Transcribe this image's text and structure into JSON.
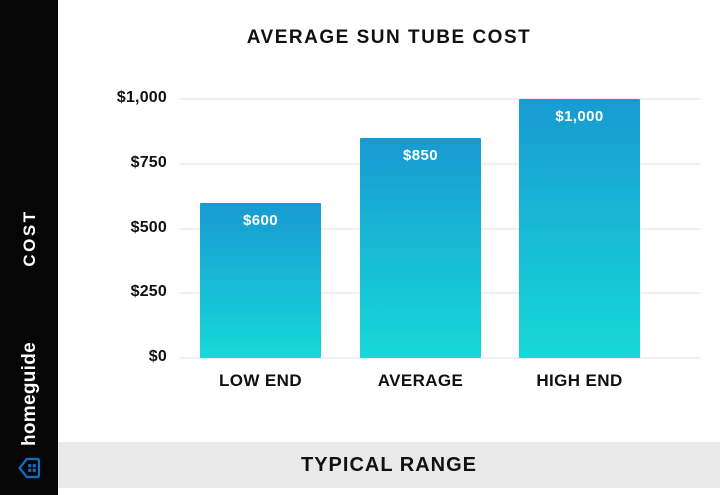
{
  "sidebar": {
    "section_label": "COST",
    "brand_name": "homeguide",
    "brand_color": "#1170c9",
    "background": "#060606"
  },
  "header": {
    "title": "AVERAGE SUN TUBE COST"
  },
  "footer": {
    "label": "TYPICAL RANGE",
    "background": "#e9e9e9"
  },
  "chart_data": {
    "type": "bar",
    "title": "AVERAGE SUN TUBE COST",
    "categories": [
      "LOW END",
      "AVERAGE",
      "HIGH END"
    ],
    "values": [
      600,
      850,
      1000
    ],
    "value_labels": [
      "$600",
      "$850",
      "$1,000"
    ],
    "y_tick_values": [
      1000,
      750,
      500,
      250,
      0
    ],
    "y_tick_labels": [
      "$1,000",
      "$750",
      "$500",
      "$250",
      "$0"
    ],
    "ylim": [
      0,
      1000
    ],
    "grid": true,
    "legend": false,
    "xlabel": "",
    "ylabel": "COST",
    "bar_gradient_top": "#189ad2",
    "bar_gradient_bottom": "#17d8d8",
    "gridline_color": "#efefef"
  }
}
